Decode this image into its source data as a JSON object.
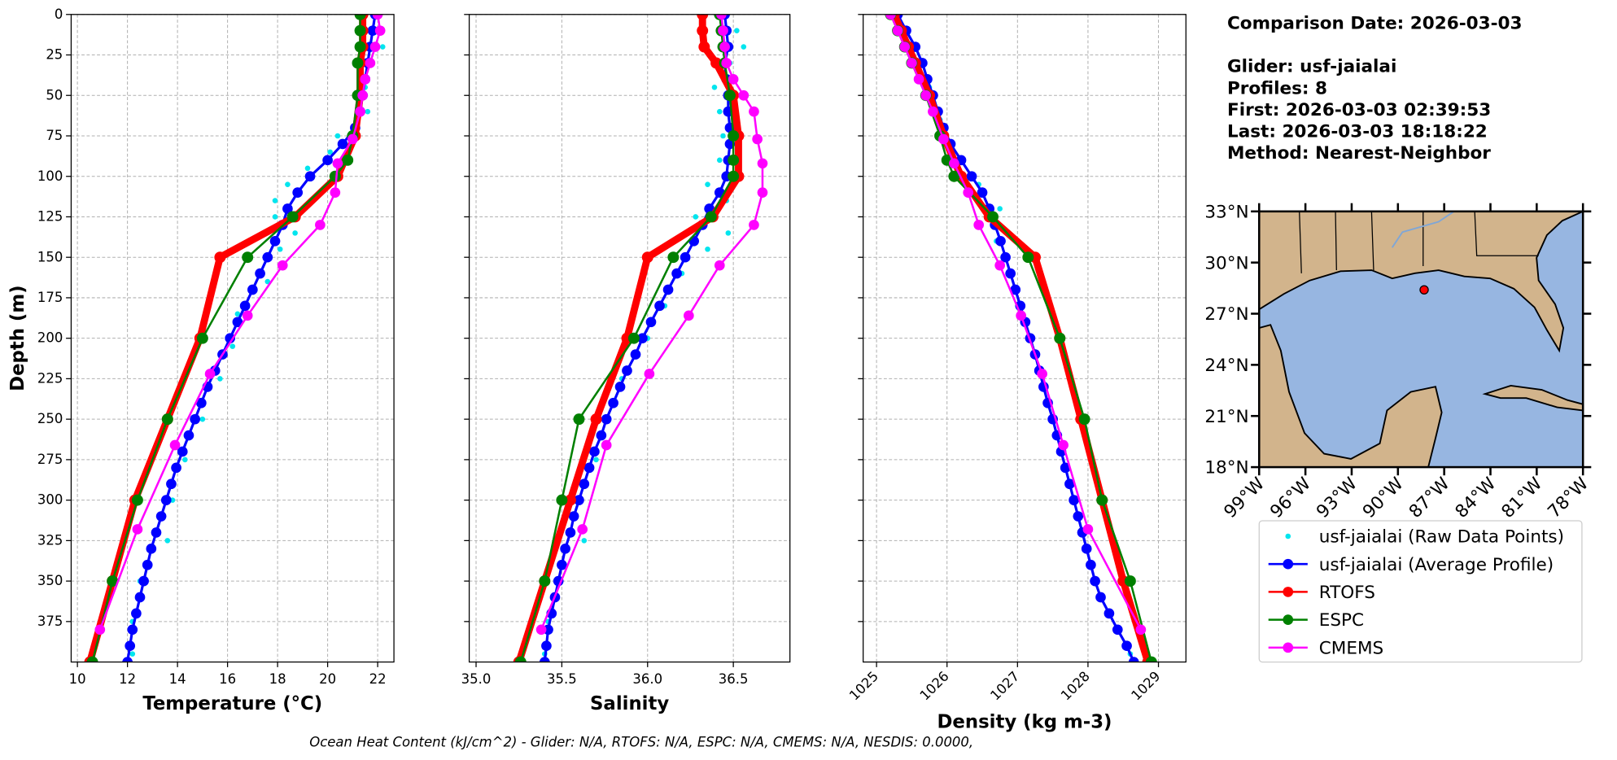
{
  "chart_data": [
    {
      "type": "line",
      "xlabel": "Temperature (°C)",
      "ylabel": "Depth (m)",
      "xlim": [
        9.75,
        22.65
      ],
      "xticks": [
        10,
        12,
        14,
        16,
        18,
        20,
        22
      ],
      "ylim": [
        0,
        400
      ],
      "yticks": [
        0,
        25,
        50,
        75,
        100,
        125,
        150,
        175,
        200,
        225,
        250,
        275,
        300,
        325,
        350,
        375
      ],
      "grid": true,
      "series": [
        {
          "name": "usf-jaialai (Raw Data Points)",
          "color": "#00e5ee",
          "y": [
            10,
            20,
            30,
            45,
            60,
            75,
            85,
            95,
            105,
            115,
            125,
            135,
            145,
            165,
            185,
            205,
            225,
            250,
            275,
            300,
            325,
            350,
            375,
            395
          ],
          "values": [
            21.9,
            22.2,
            21.1,
            21.5,
            21.6,
            20.4,
            20.1,
            19.2,
            18.4,
            17.9,
            17.9,
            18.7,
            18.1,
            17.6,
            16.4,
            16.2,
            15.7,
            15.0,
            14.3,
            13.8,
            13.6,
            12.5,
            12.2,
            12.2
          ]
        },
        {
          "name": "usf-jaialai (Average Profile)",
          "color": "#0000ff",
          "y": [
            0,
            10,
            20,
            30,
            40,
            50,
            60,
            70,
            80,
            90,
            100,
            110,
            120,
            130,
            140,
            150,
            160,
            170,
            180,
            190,
            200,
            210,
            220,
            230,
            240,
            250,
            260,
            270,
            280,
            290,
            300,
            310,
            320,
            330,
            340,
            350,
            360,
            370,
            380,
            390,
            400
          ],
          "values": [
            21.9,
            21.8,
            21.7,
            21.6,
            21.5,
            21.4,
            21.3,
            21.1,
            20.6,
            20.0,
            19.3,
            18.8,
            18.4,
            18.2,
            17.9,
            17.6,
            17.3,
            17.0,
            16.7,
            16.4,
            16.1,
            15.8,
            15.5,
            15.2,
            14.95,
            14.7,
            14.45,
            14.2,
            13.95,
            13.75,
            13.55,
            13.35,
            13.15,
            12.95,
            12.8,
            12.65,
            12.5,
            12.35,
            12.2,
            12.1,
            12.0
          ]
        },
        {
          "name": "RTOFS",
          "color": "#ff0000",
          "y": [
            0,
            10,
            20,
            30,
            50,
            75,
            100,
            125,
            150,
            200,
            250,
            300,
            350,
            400
          ],
          "values": [
            21.4,
            21.4,
            21.4,
            21.3,
            21.3,
            21.1,
            20.4,
            18.7,
            15.7,
            14.9,
            13.6,
            12.3,
            11.4,
            10.5
          ]
        },
        {
          "name": "ESPC",
          "color": "#008000",
          "y": [
            0,
            10,
            20,
            30,
            50,
            75,
            90,
            100,
            125,
            150,
            200,
            250,
            300,
            350,
            400
          ],
          "values": [
            21.3,
            21.3,
            21.3,
            21.2,
            21.2,
            21.0,
            20.8,
            20.3,
            18.6,
            16.8,
            15.0,
            13.6,
            12.4,
            11.4,
            10.6
          ]
        },
        {
          "name": "CMEMS",
          "color": "#ff00ff",
          "y": [
            0,
            10,
            20,
            30,
            40,
            50,
            60,
            77,
            92,
            110,
            130,
            155,
            186,
            222,
            266,
            318,
            380
          ],
          "values": [
            22.0,
            22.1,
            21.9,
            21.7,
            21.5,
            21.4,
            21.3,
            21.0,
            20.4,
            20.3,
            19.7,
            18.2,
            16.8,
            15.3,
            13.9,
            12.4,
            10.9
          ]
        }
      ]
    },
    {
      "type": "line",
      "xlabel": "Salinity",
      "xlim": [
        34.96,
        36.83
      ],
      "xticks": [
        {
          "value": 35,
          "label": "35.0"
        },
        35.5,
        {
          "value": 36,
          "label": "36.0"
        },
        36.5
      ],
      "ylim": [
        0,
        400
      ],
      "yticks": [
        0,
        25,
        50,
        75,
        100,
        125,
        150,
        175,
        200,
        225,
        250,
        275,
        300,
        325,
        350,
        375
      ],
      "grid": true,
      "series": [
        {
          "color": "#00e5ee",
          "y": [
            10,
            20,
            30,
            45,
            60,
            75,
            90,
            105,
            115,
            125,
            135,
            145,
            160,
            180,
            200,
            225,
            250,
            275,
            300,
            325,
            350,
            375,
            395
          ],
          "values": [
            36.52,
            36.56,
            36.48,
            36.39,
            36.42,
            36.44,
            36.42,
            36.35,
            36.46,
            36.28,
            36.47,
            36.35,
            36.2,
            36.1,
            36.0,
            35.85,
            35.75,
            35.7,
            35.58,
            35.63,
            35.47,
            35.42,
            35.4
          ]
        },
        {
          "color": "#0000ff",
          "y": [
            0,
            10,
            20,
            30,
            40,
            50,
            60,
            70,
            80,
            90,
            100,
            110,
            120,
            130,
            140,
            150,
            160,
            170,
            180,
            190,
            200,
            210,
            220,
            230,
            240,
            250,
            260,
            270,
            280,
            290,
            300,
            310,
            320,
            330,
            340,
            350,
            360,
            370,
            380,
            390,
            400
          ],
          "values": [
            36.45,
            36.46,
            36.47,
            36.45,
            36.46,
            36.47,
            36.47,
            36.48,
            36.48,
            36.47,
            36.46,
            36.42,
            36.36,
            36.32,
            36.27,
            36.22,
            36.17,
            36.12,
            36.07,
            36.02,
            35.97,
            35.93,
            35.88,
            35.84,
            35.8,
            35.76,
            35.73,
            35.69,
            35.66,
            35.63,
            35.6,
            35.57,
            35.55,
            35.52,
            35.5,
            35.48,
            35.46,
            35.44,
            35.42,
            35.41,
            35.4
          ]
        },
        {
          "color": "#ff0000",
          "y": [
            0,
            10,
            20,
            30,
            50,
            75,
            100,
            125,
            150,
            200,
            250,
            300,
            350,
            400
          ],
          "values": [
            36.32,
            36.32,
            36.33,
            36.4,
            36.5,
            36.53,
            36.53,
            36.38,
            36.0,
            35.88,
            35.7,
            35.55,
            35.4,
            35.25
          ]
        },
        {
          "color": "#008000",
          "y": [
            0,
            10,
            20,
            30,
            50,
            75,
            90,
            100,
            125,
            150,
            200,
            250,
            300,
            350,
            400
          ],
          "values": [
            36.42,
            36.43,
            36.44,
            36.45,
            36.48,
            36.5,
            36.5,
            36.5,
            36.37,
            36.15,
            35.92,
            35.6,
            35.5,
            35.4,
            35.26
          ]
        },
        {
          "color": "#ff00ff",
          "y": [
            0,
            10,
            20,
            30,
            40,
            50,
            60,
            77,
            92,
            110,
            130,
            155,
            186,
            222,
            266,
            318,
            380
          ],
          "values": [
            36.43,
            36.44,
            36.45,
            36.46,
            36.5,
            36.56,
            36.62,
            36.64,
            36.67,
            36.67,
            36.62,
            36.42,
            36.24,
            36.01,
            35.76,
            35.62,
            35.38
          ]
        }
      ]
    },
    {
      "type": "line",
      "xlabel": "Density (kg m-3)",
      "rotate_xticks": true,
      "xlim": [
        1024.81,
        1029.39
      ],
      "xticks": [
        1025,
        1026,
        1027,
        1028,
        1029
      ],
      "ylim": [
        0,
        400
      ],
      "yticks": [
        0,
        25,
        50,
        75,
        100,
        125,
        150,
        175,
        200,
        225,
        250,
        275,
        300,
        325,
        350,
        375
      ],
      "grid": true,
      "series": [
        {
          "color": "#00e5ee",
          "y": [
            10,
            25,
            45,
            65,
            85,
            105,
            120,
            140,
            170,
            200,
            240,
            280,
            320,
            360,
            395
          ],
          "values": [
            1025.3,
            1025.5,
            1025.75,
            1025.9,
            1026.05,
            1026.45,
            1026.75,
            1026.7,
            1027.0,
            1027.2,
            1027.45,
            1027.7,
            1027.95,
            1028.2,
            1028.6
          ]
        },
        {
          "color": "#0000ff",
          "y": [
            0,
            10,
            20,
            30,
            40,
            50,
            60,
            70,
            80,
            90,
            100,
            110,
            120,
            130,
            140,
            150,
            160,
            170,
            180,
            190,
            200,
            210,
            220,
            230,
            240,
            250,
            260,
            270,
            280,
            290,
            300,
            310,
            320,
            330,
            340,
            350,
            360,
            370,
            380,
            390,
            400
          ],
          "values": [
            1025.3,
            1025.42,
            1025.55,
            1025.65,
            1025.72,
            1025.8,
            1025.87,
            1025.95,
            1026.05,
            1026.2,
            1026.35,
            1026.5,
            1026.6,
            1026.68,
            1026.76,
            1026.83,
            1026.9,
            1026.97,
            1027.04,
            1027.11,
            1027.18,
            1027.25,
            1027.31,
            1027.37,
            1027.43,
            1027.5,
            1027.56,
            1027.62,
            1027.68,
            1027.74,
            1027.8,
            1027.86,
            1027.92,
            1027.98,
            1028.04,
            1028.1,
            1028.18,
            1028.3,
            1028.42,
            1028.55,
            1028.65
          ]
        },
        {
          "color": "#ff0000",
          "y": [
            0,
            10,
            20,
            30,
            50,
            75,
            100,
            125,
            150,
            200,
            250,
            300,
            350,
            400
          ],
          "values": [
            1025.25,
            1025.35,
            1025.45,
            1025.55,
            1025.75,
            1025.95,
            1026.2,
            1026.6,
            1027.25,
            1027.6,
            1027.9,
            1028.2,
            1028.5,
            1028.85
          ]
        },
        {
          "color": "#008000",
          "y": [
            0,
            10,
            20,
            30,
            50,
            75,
            90,
            100,
            125,
            150,
            200,
            250,
            300,
            350,
            400
          ],
          "values": [
            1025.2,
            1025.3,
            1025.4,
            1025.5,
            1025.7,
            1025.9,
            1026.0,
            1026.1,
            1026.65,
            1027.15,
            1027.6,
            1027.95,
            1028.2,
            1028.6,
            1028.9
          ]
        },
        {
          "color": "#ff00ff",
          "y": [
            0,
            10,
            20,
            30,
            40,
            50,
            60,
            77,
            92,
            110,
            130,
            155,
            186,
            222,
            266,
            318,
            380
          ],
          "values": [
            1025.2,
            1025.3,
            1025.4,
            1025.5,
            1025.6,
            1025.7,
            1025.8,
            1025.95,
            1026.1,
            1026.3,
            1026.45,
            1026.75,
            1027.05,
            1027.35,
            1027.65,
            1028.0,
            1028.75
          ]
        }
      ]
    }
  ],
  "info": [
    "Comparison Date: 2026-03-03",
    "Glider: usf-jaialai",
    "Profiles: 8",
    "First: 2026-03-03 02:39:53",
    "Last: 2026-03-03 18:18:22",
    "Method: Nearest-Neighbor"
  ],
  "map": {
    "xlim": [
      -99,
      -78
    ],
    "ylim": [
      18,
      33
    ],
    "xticks": [
      {
        "value": -99,
        "label": "99°W"
      },
      {
        "value": -96,
        "label": "96°W"
      },
      {
        "value": -93,
        "label": "93°W"
      },
      {
        "value": -90,
        "label": "90°W"
      },
      {
        "value": -87,
        "label": "87°W"
      },
      {
        "value": -84,
        "label": "84°W"
      },
      {
        "value": -81,
        "label": "81°W"
      },
      {
        "value": -78,
        "label": "78°W"
      }
    ],
    "yticks": [
      {
        "value": 18,
        "label": "18°N"
      },
      {
        "value": 21,
        "label": "21°N"
      },
      {
        "value": 24,
        "label": "24°N"
      },
      {
        "value": 27,
        "label": "27°N"
      },
      {
        "value": 30,
        "label": "30°N"
      },
      {
        "value": 33,
        "label": "33°N"
      }
    ],
    "marker": {
      "lon": -88.3,
      "lat": 28.4,
      "color": "#ff0000"
    }
  },
  "footer": "Ocean Heat Content (kJ/cm^2) - Glider: N/A,  RTOFS: N/A,  ESPC: N/A,  CMEMS: N/A,  NESDIS: 0.0000,"
}
